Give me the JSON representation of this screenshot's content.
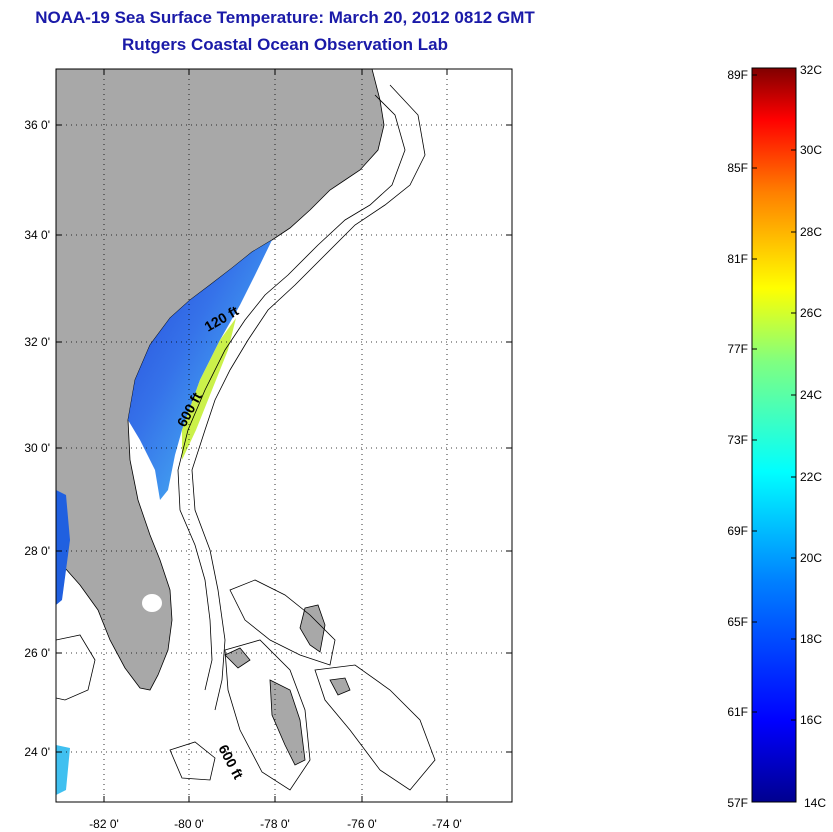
{
  "title": {
    "line1": "NOAA-19 Sea Surface Temperature:  March 20, 2012 0812 GMT",
    "line2": "Rutgers Coastal Ocean Observation Lab"
  },
  "map": {
    "lat_ticks": [
      "36 0'",
      "34 0'",
      "32 0'",
      "30 0'",
      "28 0'",
      "26 0'",
      "24 0'"
    ],
    "lon_ticks": [
      "-82 0'",
      "-80 0'",
      "-78 0'",
      "-76 0'",
      "-74 0'"
    ],
    "contours": {
      "c120": "120 ft",
      "c600a": "600 ft",
      "c600b": "600 ft"
    },
    "colors": {
      "land": "#a8a8a8",
      "water": "#ffffff",
      "contour": "#000000",
      "grid": "#000000"
    }
  },
  "colorbar": {
    "fahrenheit": [
      "89F",
      "85F",
      "81F",
      "77F",
      "73F",
      "69F",
      "65F",
      "61F",
      "57F"
    ],
    "celsius": [
      "32C",
      "30C",
      "28C",
      "26C",
      "24C",
      "22C",
      "20C",
      "18C",
      "16C",
      "14C"
    ],
    "stops": [
      "#00008f",
      "#0000ff",
      "#0080ff",
      "#00ffff",
      "#80ff80",
      "#ffff00",
      "#ff8000",
      "#ff0000",
      "#800000"
    ]
  }
}
